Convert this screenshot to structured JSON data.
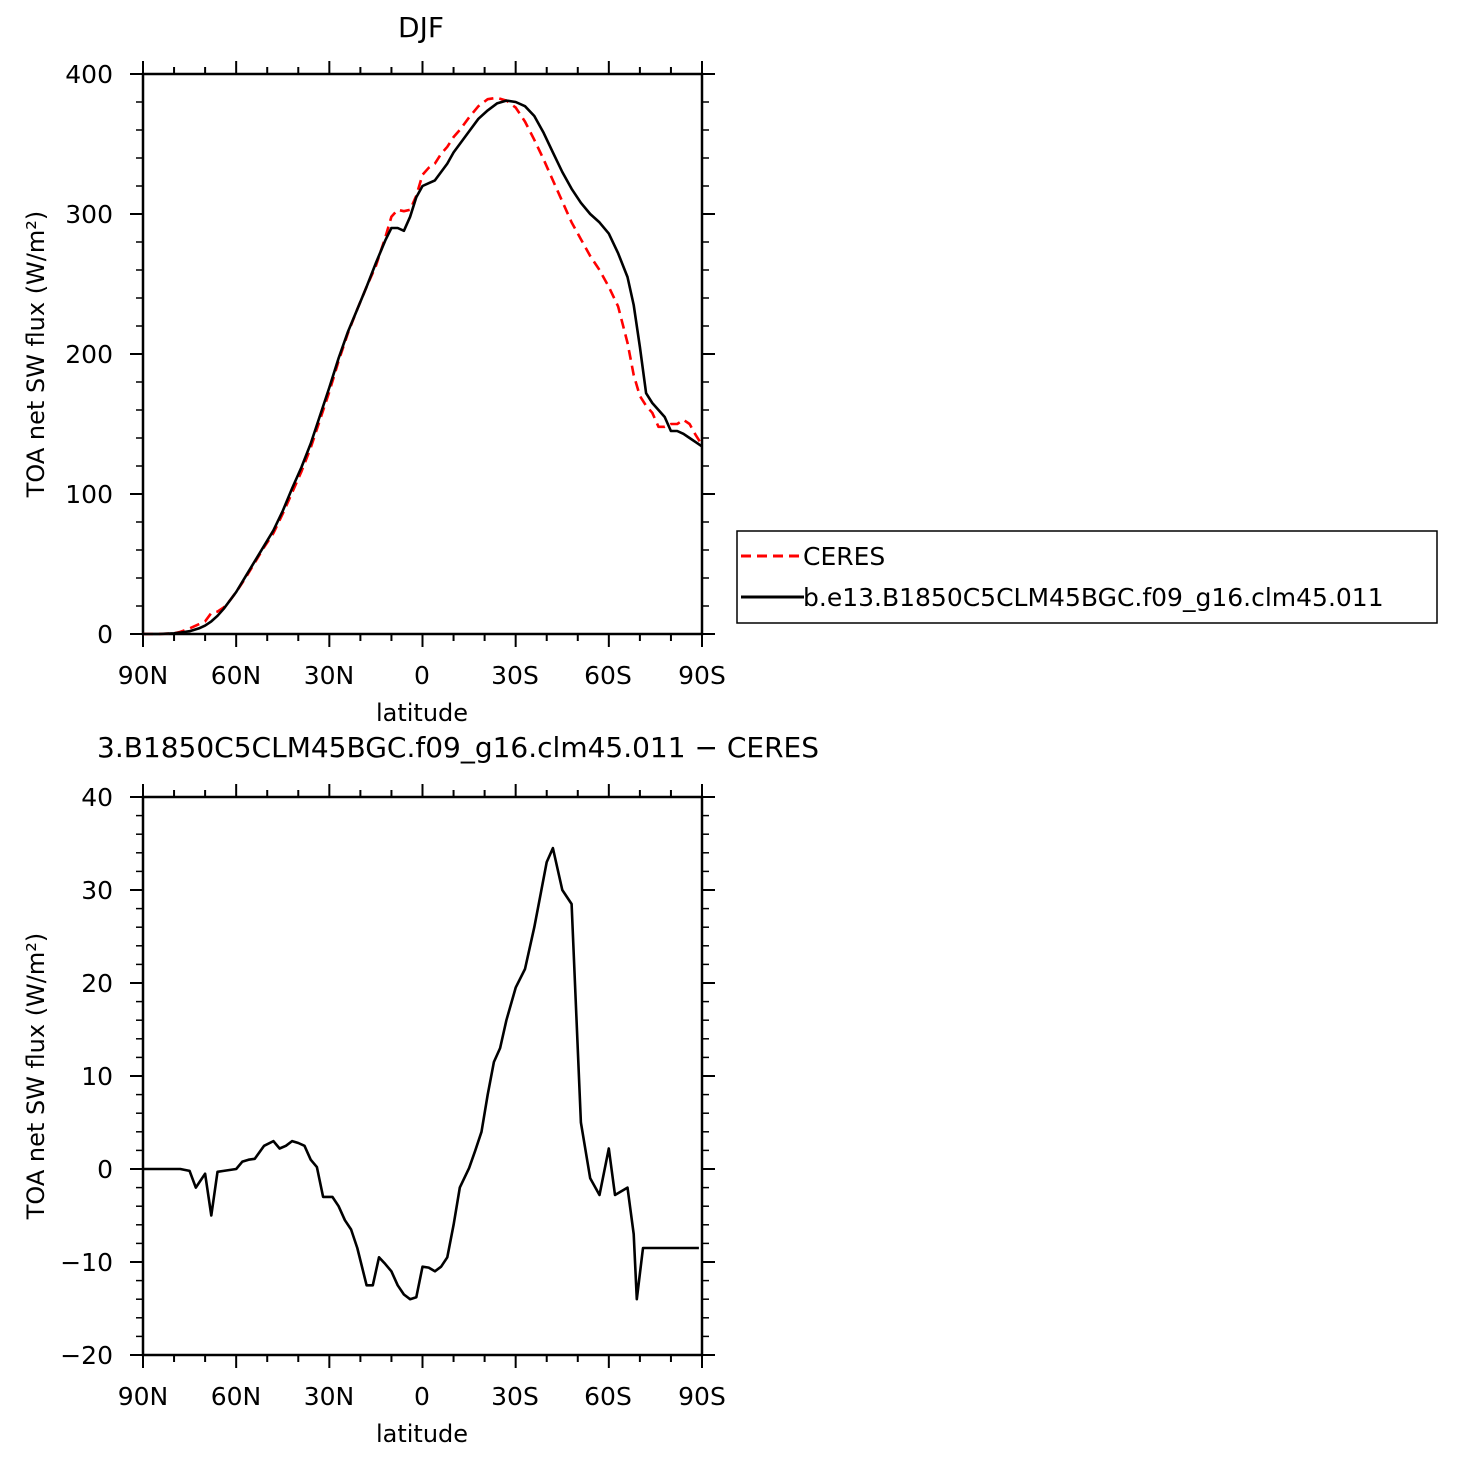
{
  "chart_data": [
    {
      "type": "line",
      "title": "DJF",
      "xlabel": "latitude",
      "ylabel": "TOA net SW flux (W/m²)",
      "x_ticks": [
        "90N",
        "60N",
        "30N",
        "0",
        "30S",
        "60S",
        "90S"
      ],
      "x_tick_values": [
        -90,
        -60,
        -30,
        0,
        30,
        60,
        90
      ],
      "xlim": [
        -90,
        90
      ],
      "y_ticks": [
        "0",
        "100",
        "200",
        "300",
        "400"
      ],
      "ylim": [
        0,
        400
      ],
      "grid": false,
      "legend_position": "right",
      "series": [
        {
          "name": "CERES",
          "style": "dashed",
          "color": "#ff0000",
          "x": [
            -90,
            -85,
            -80,
            -78,
            -75,
            -72,
            -70,
            -68,
            -66,
            -64,
            -62,
            -60,
            -57,
            -54,
            -51,
            -48,
            -45,
            -42,
            -39,
            -36,
            -33,
            -30,
            -27,
            -24,
            -21,
            -18,
            -15,
            -12,
            -10,
            -8,
            -6,
            -4,
            -2,
            0,
            2,
            4,
            6,
            8,
            10,
            12,
            15,
            18,
            21,
            24,
            27,
            30,
            33,
            36,
            39,
            42,
            45,
            48,
            51,
            54,
            57,
            60,
            63,
            66,
            68,
            70,
            72,
            74,
            76,
            78,
            80,
            82,
            84,
            86,
            88,
            90
          ],
          "values": [
            0,
            0,
            0.5,
            1.5,
            4,
            7,
            9,
            15,
            16,
            19,
            24,
            30,
            40,
            51,
            62,
            72,
            86,
            101,
            116,
            133,
            153,
            173,
            195,
            215,
            232,
            248,
            263,
            283,
            298,
            303,
            302,
            303,
            313,
            328,
            333,
            336,
            343,
            348,
            355,
            360,
            369,
            377,
            382,
            383,
            381,
            376,
            366,
            353,
            339,
            324,
            309,
            294,
            282,
            270,
            260,
            248,
            234,
            208,
            185,
            170,
            163,
            158,
            148,
            148,
            150,
            150,
            153,
            150,
            142,
            135
          ]
        },
        {
          "name": "b.e13.B1850C5CLM45BGC.f09_g16.clm45.011",
          "style": "solid",
          "color": "#000000",
          "x": [
            -90,
            -85,
            -80,
            -78,
            -75,
            -72,
            -70,
            -68,
            -66,
            -64,
            -62,
            -60,
            -57,
            -54,
            -51,
            -48,
            -45,
            -42,
            -39,
            -36,
            -33,
            -30,
            -27,
            -24,
            -21,
            -18,
            -15,
            -12,
            -10,
            -8,
            -6,
            -4,
            -2,
            0,
            2,
            4,
            6,
            8,
            10,
            12,
            15,
            18,
            21,
            24,
            27,
            30,
            33,
            36,
            39,
            42,
            45,
            48,
            51,
            54,
            57,
            60,
            63,
            66,
            68,
            70,
            72,
            74,
            76,
            78,
            80,
            82,
            84,
            86,
            88,
            90
          ],
          "values": [
            0,
            0,
            0.5,
            1,
            2,
            4,
            6,
            9,
            13,
            18,
            24,
            30,
            41,
            52,
            63,
            74,
            88,
            104,
            119,
            136,
            156,
            176,
            197,
            216,
            232,
            248,
            265,
            281,
            290,
            290,
            288,
            298,
            312,
            320,
            322,
            324,
            330,
            336,
            344,
            350,
            359,
            368,
            374,
            379,
            381,
            380,
            377,
            370,
            358,
            344,
            330,
            318,
            308,
            300,
            294,
            286,
            272,
            255,
            235,
            205,
            172,
            165,
            160,
            155,
            145,
            145,
            143,
            140,
            137,
            134
          ]
        }
      ]
    },
    {
      "type": "line",
      "title": "3.B1850C5CLM45BGC.f09_g16.clm45.011 − CERES",
      "xlabel": "latitude",
      "ylabel": "TOA net SW flux (W/m²)",
      "x_ticks": [
        "90N",
        "60N",
        "30N",
        "0",
        "30S",
        "60S",
        "90S"
      ],
      "x_tick_values": [
        -90,
        -60,
        -30,
        0,
        30,
        60,
        90
      ],
      "xlim": [
        -90,
        90
      ],
      "y_ticks": [
        "−20",
        "−10",
        "0",
        "10",
        "20",
        "30",
        "40"
      ],
      "ylim": [
        -20,
        40
      ],
      "grid": false,
      "series": [
        {
          "style": "solid",
          "color": "#000000",
          "x": [
            -90,
            -85,
            -80,
            -78,
            -75,
            -73,
            -70,
            -68,
            -66,
            -64,
            -60,
            -58,
            -56,
            -54,
            -51,
            -48,
            -46,
            -44,
            -42,
            -40,
            -38,
            -36,
            -34,
            -32,
            -29,
            -27,
            -25,
            -23,
            -21,
            -18,
            -16,
            -14,
            -12,
            -10,
            -8,
            -6,
            -4,
            -2,
            0,
            2,
            4,
            6,
            8,
            10,
            12,
            15,
            17,
            19,
            21,
            23,
            25,
            27,
            30,
            33,
            36,
            38,
            40,
            42,
            45,
            48,
            51,
            54,
            57,
            60,
            62,
            66,
            68,
            69,
            71,
            73,
            75,
            77,
            79,
            81,
            83,
            85,
            87,
            89
          ],
          "values": [
            0,
            0,
            0,
            0,
            -0.2,
            -2,
            -0.5,
            -5,
            -0.3,
            -0.2,
            0,
            0.8,
            1,
            1.1,
            2.5,
            3,
            2.2,
            2.5,
            3,
            2.8,
            2.5,
            1,
            0.2,
            -3,
            -3,
            -4,
            -5.5,
            -6.5,
            -8.5,
            -12.5,
            -12.5,
            -9.5,
            -10.2,
            -11,
            -12.5,
            -13.5,
            -14,
            -13.8,
            -10.5,
            -10.6,
            -11,
            -10.5,
            -9.5,
            -6,
            -2,
            0.1,
            2,
            4,
            8,
            11.5,
            13,
            16,
            19.5,
            21.5,
            26,
            29.5,
            33,
            34.5,
            30,
            28.5,
            5,
            -1,
            -2.8,
            2.2,
            -2.8,
            -2,
            -7,
            -14,
            -8.5,
            -8.5,
            -8.5,
            -8.5,
            -8.5,
            -8.5,
            -8.5,
            -8.5,
            -8.5,
            -8.5
          ]
        }
      ]
    }
  ]
}
